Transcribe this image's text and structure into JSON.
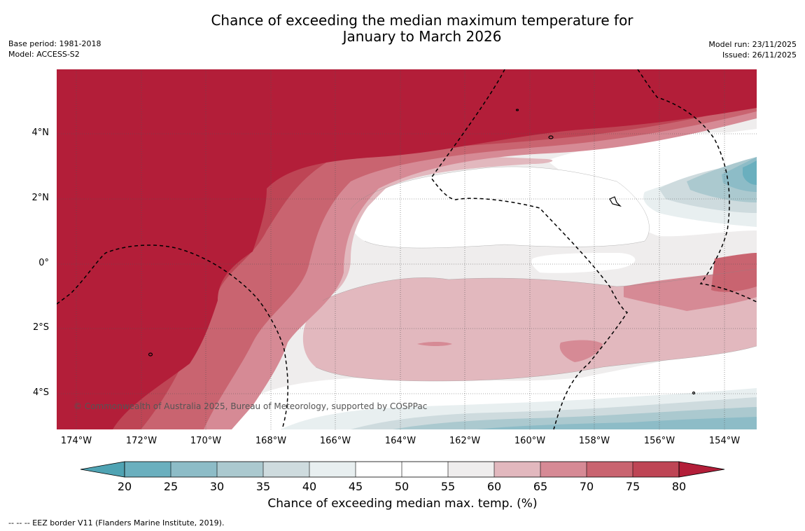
{
  "title_line1": "Chance of exceeding the median maximum temperature for",
  "title_line2": "January to March 2026",
  "base_period": "Base period: 1981-2018",
  "model": "Model: ACCESS-S2",
  "model_run": "Model run: 23/11/2025",
  "issued": "Issued: 26/11/2025",
  "copyright": "© Commonwealth of Australia 2025, Bureau of Meteorology, supported by COSPPac",
  "lat_labels": [
    "4°N",
    "2°N",
    "0°",
    "2°S",
    "4°S"
  ],
  "lon_labels": [
    "174°W",
    "172°W",
    "170°W",
    "168°W",
    "166°W",
    "164°W",
    "162°W",
    "160°W",
    "158°W",
    "156°W",
    "154°W"
  ],
  "colorbar": {
    "title": "Chance of exceeding median max. temp. (%)",
    "ticks": [
      "20",
      "25",
      "30",
      "35",
      "40",
      "45",
      "50",
      "55",
      "60",
      "65",
      "70",
      "75",
      "80"
    ],
    "colors": {
      "below20": "#4fa3b3",
      "c20_25": "#6aafbe",
      "c25_30": "#8dbcc7",
      "c30_35": "#abc9cf",
      "c35_40": "#cedbde",
      "c40_45": "#e8eff0",
      "c45_50": "#ffffff",
      "c50_55": "#ffffff",
      "c55_60": "#efeded",
      "c60_65": "#e2b8be",
      "c65_70": "#d68a95",
      "c70_75": "#c96470",
      "c75_80": "#be4555",
      "above80": "#b31e39"
    }
  },
  "legend_note": "--  --  -- EEZ border V11 (Flanders Marine Institute, 2019)."
}
